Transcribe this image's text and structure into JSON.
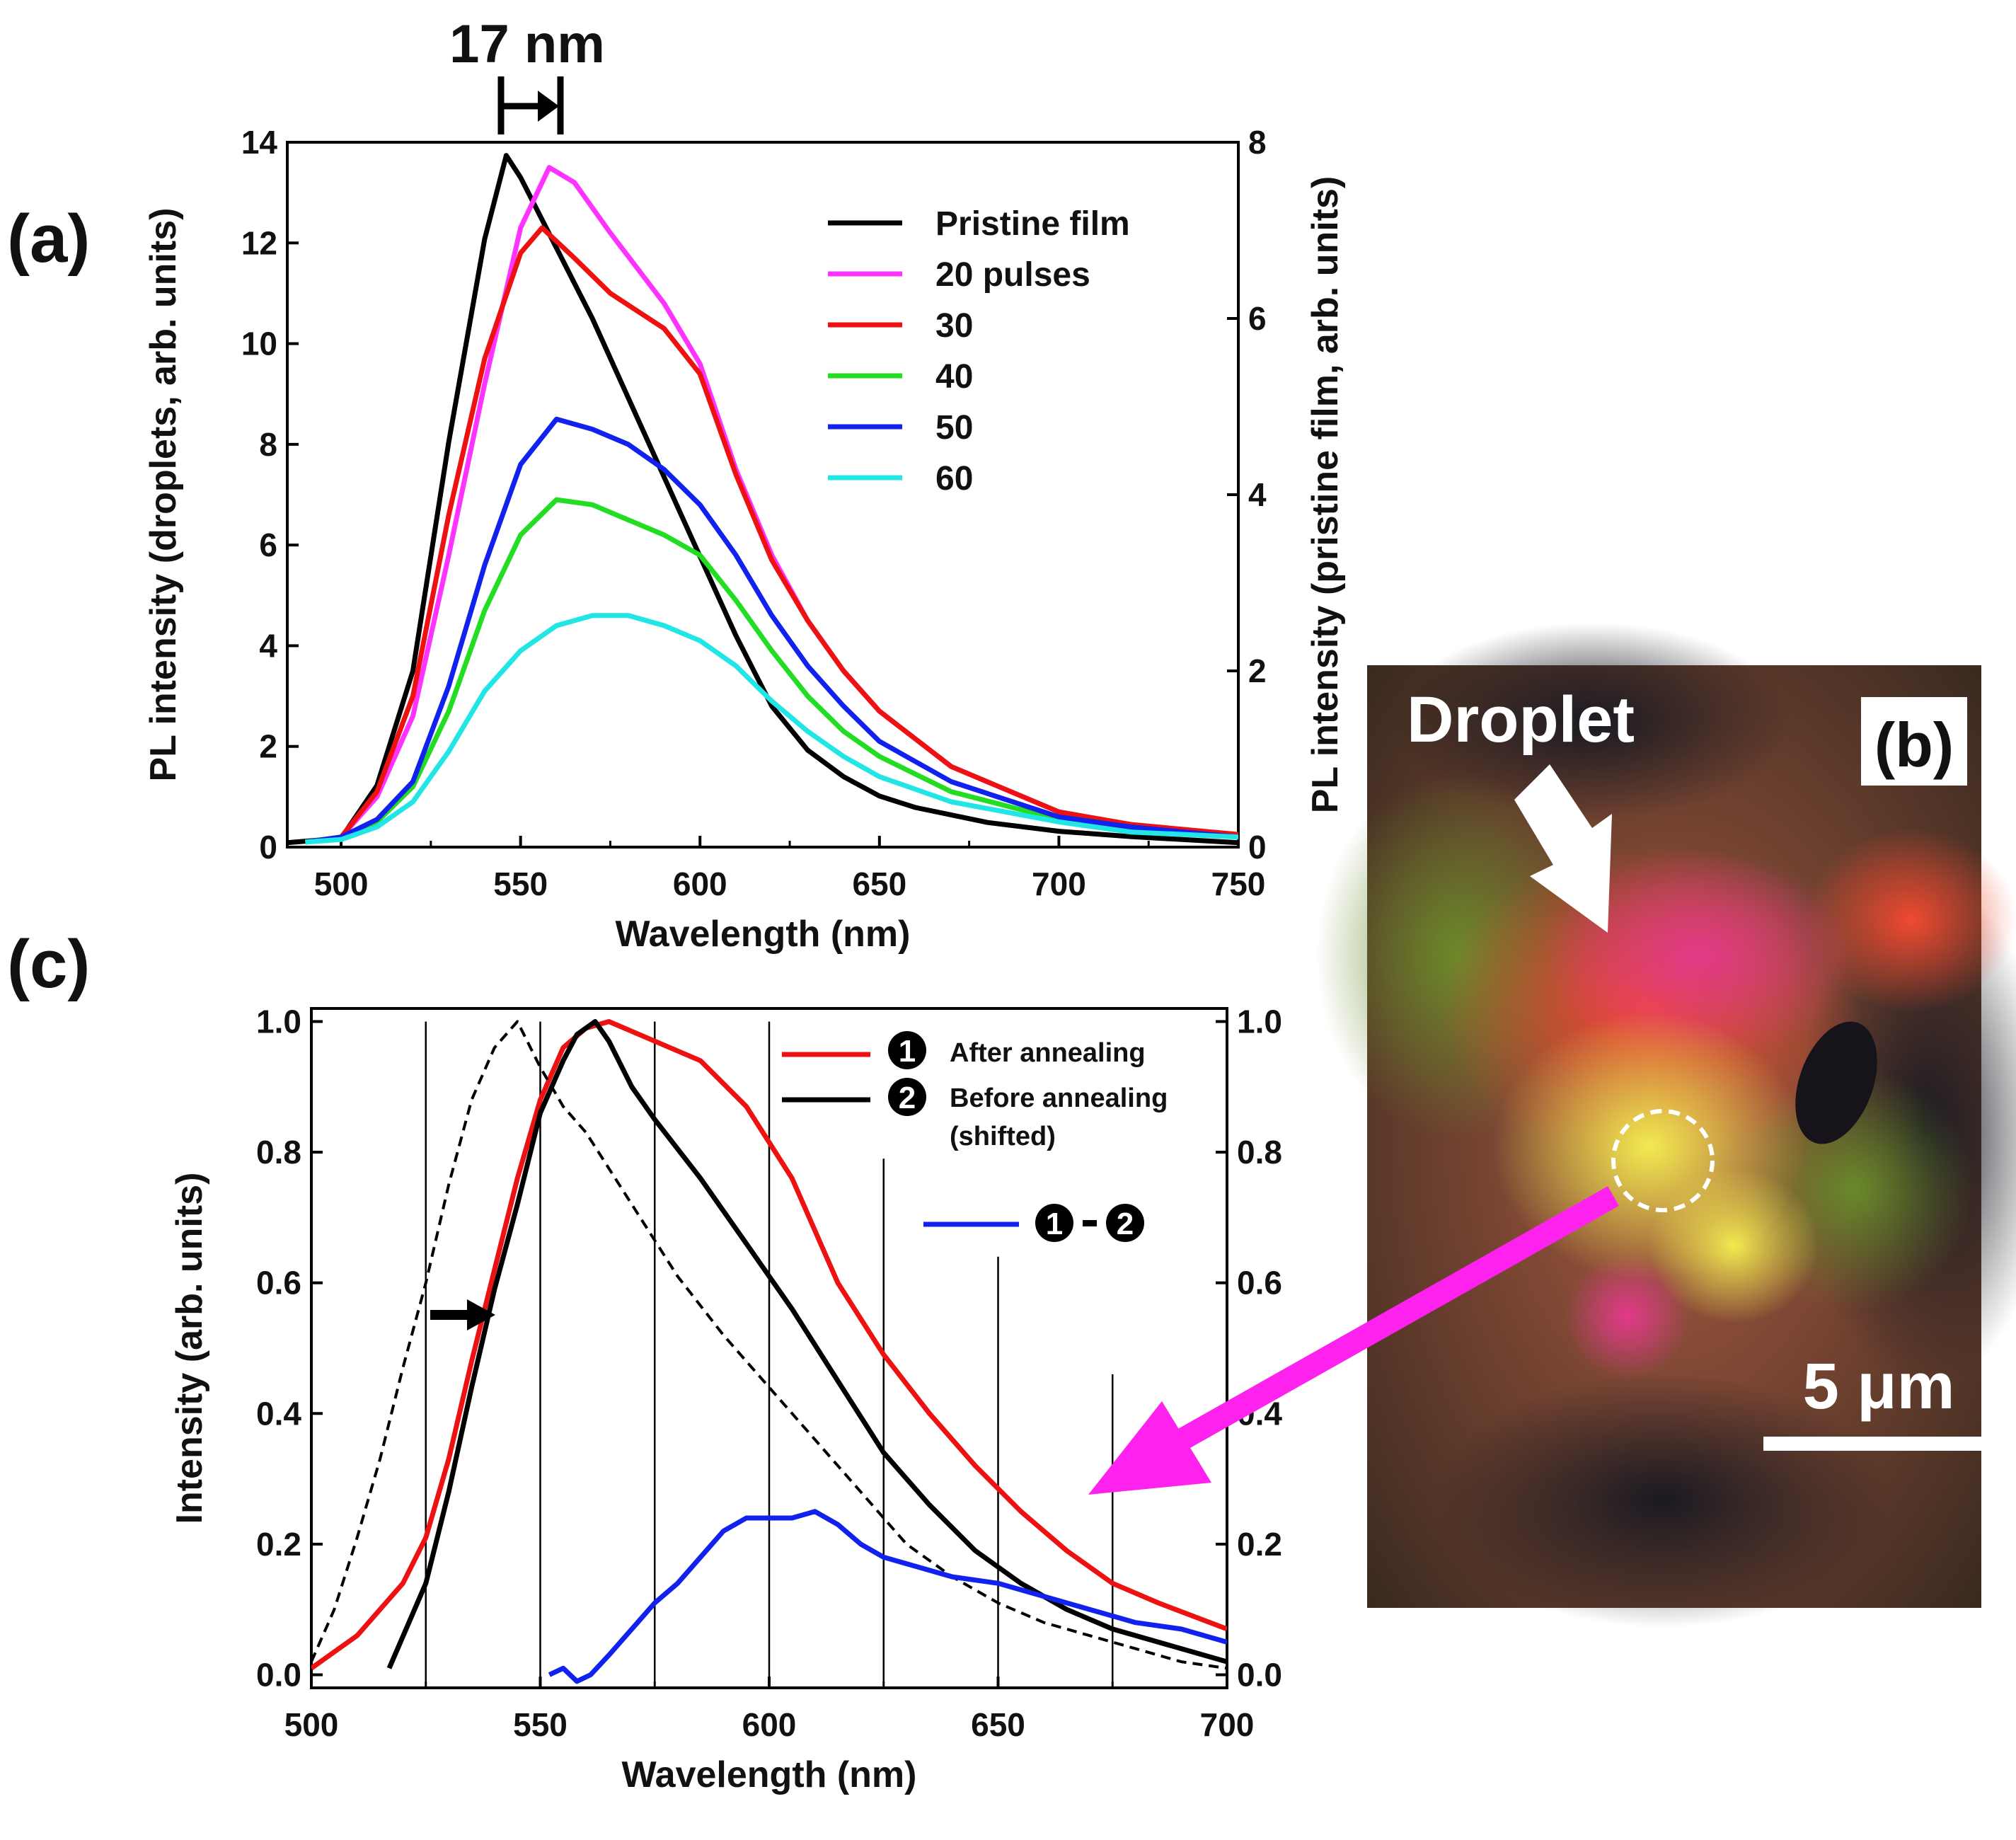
{
  "panels": {
    "a": "(a)",
    "b": "(b)",
    "c": "(c)"
  },
  "annotations": {
    "shift": "17 nm"
  },
  "micrograph": {
    "droplet_label": "Droplet",
    "scale_bar": "5 μm",
    "panel": "(b)"
  },
  "chart_data": [
    {
      "id": "a",
      "type": "line",
      "xlabel": "Wavelength (nm)",
      "ylabel": "PL intensity (droplets, arb. units)",
      "ylabel_right": "PL intensity (pristine film, arb. units)",
      "xlim": [
        485,
        750
      ],
      "ylim": [
        0,
        14
      ],
      "ylim_right": [
        0,
        8
      ],
      "xticks": [
        500,
        550,
        600,
        650,
        700,
        750
      ],
      "yticks": [
        0,
        2,
        4,
        6,
        8,
        10,
        12,
        14
      ],
      "yticks_right": [
        0,
        2,
        4,
        6,
        8
      ],
      "legend_position": "top-right",
      "series": [
        {
          "name": "Pristine film",
          "axis": "right",
          "color": "#000000",
          "x": [
            485,
            500,
            510,
            520,
            530,
            540,
            546,
            550,
            560,
            570,
            580,
            590,
            600,
            610,
            620,
            630,
            640,
            650,
            660,
            680,
            700,
            720,
            750
          ],
          "y": [
            0.05,
            0.1,
            0.7,
            2.0,
            4.6,
            6.9,
            7.85,
            7.6,
            6.8,
            6.0,
            5.1,
            4.2,
            3.3,
            2.4,
            1.6,
            1.1,
            0.8,
            0.58,
            0.45,
            0.28,
            0.18,
            0.12,
            0.05
          ]
        },
        {
          "name": "20 pulses",
          "axis": "left",
          "color": "#ff33ff",
          "x": [
            490,
            500,
            510,
            520,
            530,
            540,
            550,
            558,
            565,
            575,
            590,
            600,
            610,
            620,
            630,
            640,
            650,
            670,
            700,
            720,
            750
          ],
          "y": [
            0.1,
            0.2,
            1.0,
            2.6,
            5.8,
            9.2,
            12.3,
            13.5,
            13.2,
            12.2,
            10.8,
            9.6,
            7.5,
            5.8,
            4.5,
            3.5,
            2.7,
            1.6,
            0.7,
            0.4,
            0.2
          ]
        },
        {
          "name": "30",
          "axis": "left",
          "color": "#ee1111",
          "x": [
            490,
            500,
            510,
            520,
            530,
            540,
            550,
            556,
            565,
            575,
            590,
            600,
            610,
            620,
            630,
            640,
            650,
            670,
            700,
            720,
            750
          ],
          "y": [
            0.1,
            0.2,
            1.1,
            3.0,
            6.6,
            9.7,
            11.8,
            12.3,
            11.7,
            11.0,
            10.3,
            9.4,
            7.4,
            5.7,
            4.5,
            3.5,
            2.7,
            1.6,
            0.7,
            0.45,
            0.25
          ]
        },
        {
          "name": "40",
          "axis": "left",
          "color": "#22dd22",
          "x": [
            490,
            500,
            510,
            520,
            530,
            540,
            550,
            560,
            570,
            580,
            590,
            600,
            610,
            620,
            630,
            640,
            650,
            670,
            700,
            720,
            750
          ],
          "y": [
            0.1,
            0.2,
            0.5,
            1.2,
            2.7,
            4.7,
            6.2,
            6.9,
            6.8,
            6.5,
            6.2,
            5.8,
            4.9,
            3.9,
            3.0,
            2.3,
            1.8,
            1.1,
            0.55,
            0.35,
            0.2
          ]
        },
        {
          "name": "50",
          "axis": "left",
          "color": "#1122ee",
          "x": [
            490,
            500,
            510,
            520,
            530,
            540,
            550,
            560,
            570,
            580,
            590,
            600,
            610,
            620,
            630,
            640,
            650,
            670,
            700,
            720,
            750
          ],
          "y": [
            0.1,
            0.2,
            0.55,
            1.3,
            3.2,
            5.6,
            7.6,
            8.5,
            8.3,
            8.0,
            7.5,
            6.8,
            5.8,
            4.6,
            3.6,
            2.8,
            2.1,
            1.3,
            0.6,
            0.4,
            0.2
          ]
        },
        {
          "name": "60",
          "axis": "left",
          "color": "#22e6e6",
          "x": [
            490,
            500,
            510,
            520,
            530,
            540,
            550,
            560,
            570,
            580,
            590,
            600,
            610,
            620,
            630,
            640,
            650,
            670,
            700,
            720,
            750
          ],
          "y": [
            0.1,
            0.15,
            0.4,
            0.9,
            1.9,
            3.1,
            3.9,
            4.4,
            4.6,
            4.6,
            4.4,
            4.1,
            3.6,
            2.9,
            2.3,
            1.8,
            1.4,
            0.9,
            0.5,
            0.3,
            0.2
          ]
        }
      ]
    },
    {
      "id": "c",
      "type": "line",
      "xlabel": "Wavelength (nm)",
      "ylabel": "Intensity (arb. units)",
      "xlim": [
        500,
        700
      ],
      "ylim": [
        -0.02,
        1.02
      ],
      "xticks": [
        500,
        550,
        600,
        650,
        700
      ],
      "yticks": [
        0.0,
        0.2,
        0.4,
        0.6,
        0.8,
        1.0
      ],
      "yticks_right": [
        0.0,
        0.2,
        0.4,
        0.6,
        0.8,
        1.0
      ],
      "vertical_lines": [
        525,
        550,
        575,
        600,
        625,
        650,
        675
      ],
      "vertical_line_tops": [
        1.0,
        1.0,
        1.0,
        1.0,
        0.79,
        0.64,
        0.46
      ],
      "legend_position": "top-right",
      "series": [
        {
          "name": "After annealing",
          "marker": "1",
          "color": "#ee1111",
          "x": [
            500,
            510,
            520,
            525,
            530,
            535,
            540,
            545,
            550,
            555,
            560,
            565,
            575,
            585,
            595,
            605,
            615,
            625,
            635,
            645,
            655,
            665,
            675,
            685,
            700
          ],
          "y": [
            0.01,
            0.06,
            0.14,
            0.21,
            0.33,
            0.48,
            0.62,
            0.76,
            0.88,
            0.96,
            0.99,
            1.0,
            0.97,
            0.94,
            0.87,
            0.76,
            0.6,
            0.49,
            0.4,
            0.32,
            0.25,
            0.19,
            0.14,
            0.11,
            0.07
          ]
        },
        {
          "name": "Before annealing",
          "sublabel": "(shifted)",
          "marker": "2",
          "color": "#000000",
          "x": [
            517,
            525,
            530,
            535,
            540,
            545,
            550,
            555,
            558,
            562,
            565,
            570,
            575,
            585,
            595,
            605,
            615,
            625,
            635,
            645,
            655,
            665,
            675,
            685,
            700
          ],
          "y": [
            0.01,
            0.14,
            0.28,
            0.44,
            0.59,
            0.72,
            0.86,
            0.94,
            0.98,
            1.0,
            0.97,
            0.9,
            0.85,
            0.76,
            0.66,
            0.56,
            0.45,
            0.34,
            0.26,
            0.19,
            0.14,
            0.1,
            0.07,
            0.05,
            0.02
          ]
        },
        {
          "name": "dashed",
          "color": "#000000",
          "dashed": true,
          "x": [
            500,
            505,
            510,
            515,
            520,
            525,
            530,
            535,
            540,
            545,
            550,
            555,
            560,
            570,
            580,
            590,
            600,
            610,
            620,
            630,
            640,
            650,
            660,
            670,
            680,
            690,
            700
          ],
          "y": [
            0.02,
            0.1,
            0.21,
            0.33,
            0.47,
            0.6,
            0.75,
            0.88,
            0.96,
            1.0,
            0.93,
            0.87,
            0.83,
            0.72,
            0.61,
            0.52,
            0.44,
            0.36,
            0.28,
            0.2,
            0.15,
            0.11,
            0.08,
            0.06,
            0.04,
            0.02,
            0.01
          ]
        },
        {
          "name": "1-2",
          "markers": [
            "1",
            "2"
          ],
          "color": "#1122ee",
          "x": [
            552,
            555,
            558,
            561,
            565,
            570,
            575,
            580,
            585,
            590,
            595,
            600,
            605,
            610,
            615,
            620,
            625,
            630,
            640,
            650,
            660,
            670,
            680,
            690,
            700
          ],
          "y": [
            0.0,
            0.01,
            -0.01,
            0.0,
            0.03,
            0.07,
            0.11,
            0.14,
            0.18,
            0.22,
            0.24,
            0.24,
            0.24,
            0.25,
            0.23,
            0.2,
            0.18,
            0.17,
            0.15,
            0.14,
            0.12,
            0.1,
            0.08,
            0.07,
            0.05
          ]
        }
      ]
    }
  ]
}
